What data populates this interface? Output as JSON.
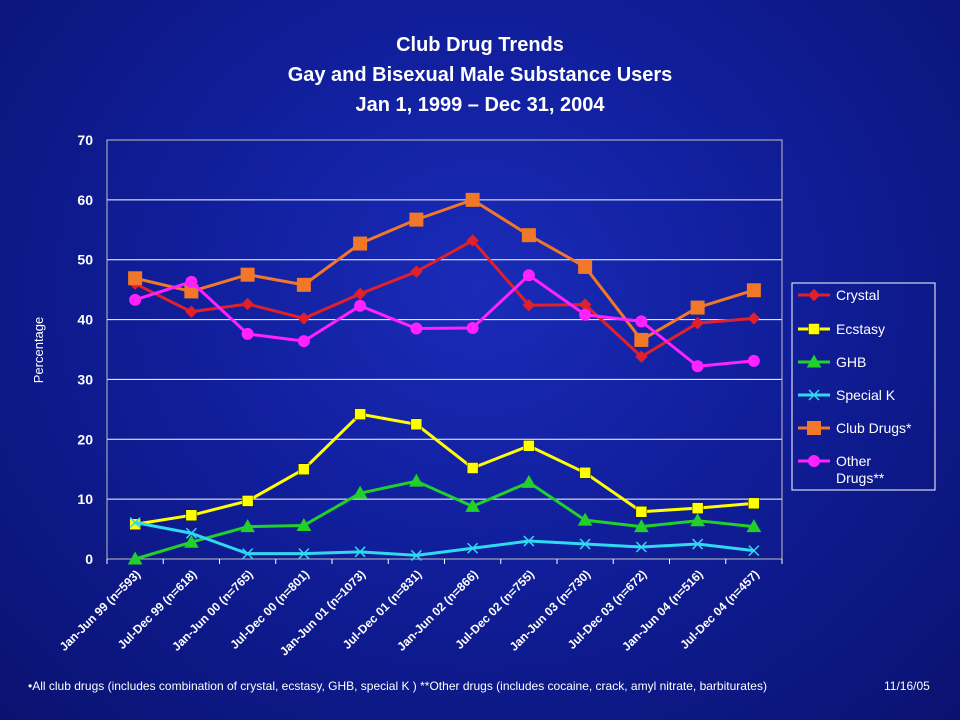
{
  "chart_data": {
    "type": "line",
    "title": "Club Drug Trends",
    "subtitle": "Gay and Bisexual Male Substance Users",
    "date_range": "Jan 1, 1999 – Dec 31, 2004",
    "ylabel": "Percentage",
    "xlabel": "",
    "ylim": [
      0,
      70
    ],
    "yticks": [
      0,
      10,
      20,
      30,
      40,
      50,
      60,
      70
    ],
    "grid": "horizontal",
    "legend": "right",
    "categories": [
      "Jan-Jun 99 (n=593)",
      "Jul-Dec 99 (n=618)",
      "Jan-Jun 00 (n=765)",
      "Jul-Dec 00 (n=801)",
      "Jan-Jun 01 (n=1073)",
      "Jul-Dec 01 (n=831)",
      "Jan-Jun 02 (n=866)",
      "Jul-Dec 02 (n=755)",
      "Jan-Jun 03 (n=730)",
      "Jul-Dec 03 (n=672)",
      "Jan-Jun 04 (n=516)",
      "Jul-Dec 04 (n=457)"
    ],
    "series": [
      {
        "name": "Crystal",
        "color": "#e0202a",
        "marker": "diamond",
        "values": [
          46,
          41.3,
          42.6,
          40.2,
          44.3,
          48,
          53.2,
          42.4,
          42.5,
          33.8,
          39.4,
          40.2
        ]
      },
      {
        "name": "Ecstasy",
        "color": "#ffff00",
        "marker": "square",
        "values": [
          5.8,
          7.3,
          9.7,
          15,
          24.2,
          22.5,
          15.2,
          18.9,
          14.4,
          7.9,
          8.5,
          9.3
        ]
      },
      {
        "name": "GHB",
        "color": "#22d02a",
        "marker": "triangle",
        "values": [
          0,
          2.8,
          5.4,
          5.6,
          11,
          13,
          8.8,
          12.8,
          6.5,
          5.4,
          6.4,
          5.4
        ]
      },
      {
        "name": "Special K",
        "color": "#30d8f0",
        "marker": "x",
        "values": [
          6.1,
          4.3,
          0.9,
          0.9,
          1.2,
          0.6,
          1.8,
          3,
          2.5,
          2,
          2.5,
          1.4
        ]
      },
      {
        "name": "Club Drugs*",
        "color": "#f07828",
        "marker": "square-big",
        "values": [
          46.9,
          44.7,
          47.5,
          45.8,
          52.7,
          56.7,
          60,
          54.1,
          48.8,
          36.6,
          42,
          44.9
        ]
      },
      {
        "name": "Other Drugs**",
        "color": "#ff22ff",
        "marker": "circle",
        "values": [
          43.3,
          46.3,
          37.6,
          36.4,
          42.3,
          38.5,
          38.6,
          47.4,
          40.8,
          39.7,
          32.2,
          33.1
        ]
      }
    ]
  },
  "footnote": "•All club drugs (includes combination of crystal, ecstasy, GHB, special K ) **Other drugs (includes cocaine, crack, amyl nitrate, barbiturates)",
  "date_stamp": "11/16/05"
}
